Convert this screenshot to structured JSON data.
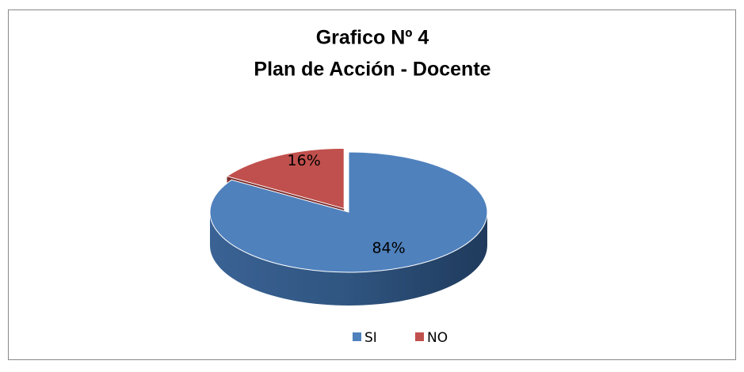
{
  "chart_data": {
    "type": "pie3d",
    "title": [
      "Grafico Nº 4",
      "Plan de Acción - Docente"
    ],
    "categories": [
      "SI",
      "NO"
    ],
    "values": [
      84,
      16
    ],
    "value_labels": [
      "84%",
      "16%"
    ],
    "colors": [
      "#4f81bd",
      "#c0504d"
    ],
    "legend": "bottom"
  }
}
